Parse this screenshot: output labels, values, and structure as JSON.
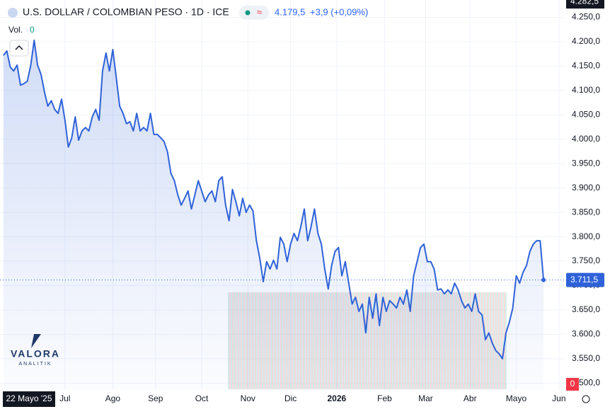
{
  "chart_data": {
    "type": "area-line",
    "title": "U.S. DOLLAR / COLOMBIAN PESO · 1D · ICE",
    "last_price": "4.179,5",
    "change": "+3,9 (+0,09%)",
    "volume_label": "Vol.",
    "volume_value": "0",
    "crosshair_date": "22 Mayo '25",
    "volume_axis_label": "0",
    "logo": "VALORA",
    "logo_sub": "ANALITIK",
    "color": "#2f62d8",
    "grid": true,
    "values": [
      4172,
      4181,
      4148,
      4140,
      4152,
      4111,
      4114,
      4119,
      4152,
      4203,
      4152,
      4133,
      4097,
      4068,
      4079,
      4061,
      4053,
      4082,
      4039,
      3984,
      4003,
      4046,
      3998,
      4017,
      4024,
      4017,
      4046,
      4061,
      4039,
      4140,
      4177,
      4140,
      4184,
      4126,
      4068,
      4053,
      4032,
      4036,
      4017,
      4053,
      4017,
      4024,
      4017,
      4053,
      4010,
      4010,
      4003,
      3995,
      3974,
      3930,
      3915,
      3886,
      3865,
      3879,
      3894,
      3857,
      3886,
      3915,
      3894,
      3872,
      3886,
      3894,
      3872,
      3915,
      3923,
      3865,
      3833,
      3897,
      3872,
      3843,
      3879,
      3850,
      3865,
      3853,
      3792,
      3756,
      3708,
      3749,
      3734,
      3752,
      3734,
      3799,
      3785,
      3749,
      3785,
      3807,
      3792,
      3821,
      3857,
      3792,
      3821,
      3857,
      3807,
      3785,
      3734,
      3693,
      3741,
      3770,
      3778,
      3720,
      3749,
      3705,
      3662,
      3676,
      3647,
      3662,
      3603,
      3676,
      3633,
      3683,
      3618,
      3676,
      3647,
      3669,
      3662,
      3654,
      3676,
      3662,
      3691,
      3647,
      3720,
      3749,
      3778,
      3785,
      3749,
      3749,
      3734,
      3691,
      3693,
      3683,
      3691,
      3683,
      3705,
      3691,
      3669,
      3654,
      3662,
      3647,
      3683,
      3647,
      3640,
      3589,
      3603,
      3582,
      3567,
      3560,
      3550,
      3603,
      3625,
      3654,
      3720,
      3705,
      3727,
      3741,
      3770,
      3785,
      3792,
      3792,
      3711.5
    ],
    "last_value_label": "3.711,5",
    "high_label": {
      "value": 4282.5,
      "label": "4.282,5"
    },
    "xlim": [
      -1,
      164.6
    ],
    "xticks": [
      {
        "value": 18,
        "label": "Jul"
      },
      {
        "value": 32,
        "label": "Ago"
      },
      {
        "value": 44.5,
        "label": "Sep"
      },
      {
        "value": 58,
        "label": "Oct"
      },
      {
        "value": 71.5,
        "label": "Nov"
      },
      {
        "value": 84,
        "label": "Dic"
      },
      {
        "value": 97.5,
        "label": "2026"
      },
      {
        "value": 111.5,
        "label": "Feb"
      },
      {
        "value": 123.5,
        "label": "Mar"
      },
      {
        "value": 136.5,
        "label": "Abr"
      },
      {
        "value": 150,
        "label": "Mayo"
      },
      {
        "value": 162.5,
        "label": "Jun"
      }
    ],
    "ylim": [
      3486,
      4285.5
    ],
    "yticks": [
      {
        "value": 3500,
        "label": "3.500,0"
      },
      {
        "value": 3550,
        "label": "3.550,0"
      },
      {
        "value": 3600,
        "label": "3.600,0"
      },
      {
        "value": 3650,
        "label": "3.650,0"
      },
      {
        "value": 3700,
        "label": "3.700,0"
      },
      {
        "value": 3750,
        "label": "3.750,0"
      },
      {
        "value": 3800,
        "label": "3.800,0"
      },
      {
        "value": 3850,
        "label": "3.850,0"
      },
      {
        "value": 3900,
        "label": "3.900,0"
      },
      {
        "value": 3950,
        "label": "3.950,0"
      },
      {
        "value": 4000,
        "label": "4.000,0"
      },
      {
        "value": 4050,
        "label": "4.050,0"
      },
      {
        "value": 4100,
        "label": "4.100,0"
      },
      {
        "value": 4150,
        "label": "4.150,0"
      },
      {
        "value": 4200,
        "label": "4.200,0"
      },
      {
        "value": 4250,
        "label": "4.250,0"
      }
    ]
  }
}
